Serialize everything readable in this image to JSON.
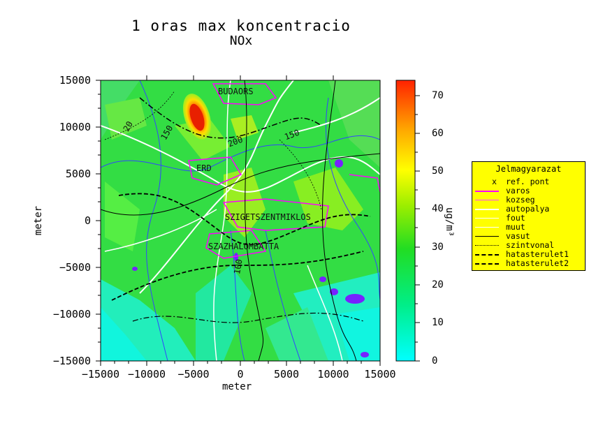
{
  "title": "1 oras max koncentracio",
  "subtitle": "NOx",
  "axes": {
    "xlabel": "meter",
    "ylabel": "meter",
    "xticks": [
      "−15000",
      "−10000",
      "−5000",
      "0",
      "5000",
      "10000",
      "15000"
    ],
    "yticks": [
      "15000",
      "10000",
      "5000",
      "0",
      "−5000",
      "−10000",
      "−15000"
    ]
  },
  "colorbar": {
    "label": "ug/m³",
    "ticks": [
      "70",
      "60",
      "50",
      "40",
      "30",
      "20",
      "10",
      "0"
    ],
    "range": [
      0,
      74
    ]
  },
  "map_labels": {
    "budaors": "BUDAORS",
    "erd": "ERD",
    "sziget": "SZIGETSZENTMIKLOS",
    "szazhalombatta": "SZAZHALOMBATTA",
    "c150a": "150",
    "c200": "200",
    "c150b": "150",
    "c100": "100",
    "c20": "20"
  },
  "legend": {
    "title": "Jelmagyarazat",
    "items": [
      {
        "label": "ref. pont",
        "symbol": "x"
      },
      {
        "label": "varos",
        "color": "#ff00ff"
      },
      {
        "label": "kozseg",
        "color": "#ff44ff"
      },
      {
        "label": "autopalya",
        "color": "#ffffff"
      },
      {
        "label": "fout",
        "color": "#ffffff"
      },
      {
        "label": "muut",
        "color": "#ffffff"
      },
      {
        "label": "vasut",
        "color": "#000000"
      },
      {
        "label": "szintvonal",
        "color": "#000000"
      },
      {
        "label": "hatasterulet1",
        "color": "#000000"
      },
      {
        "label": "hatasterulet2",
        "color": "#000000"
      }
    ]
  },
  "colors": {
    "field_low": "#00ffff",
    "field_mid": "#22dd22",
    "field_high": "#ffff00",
    "field_max": "#ff2200",
    "water": "#7722ff",
    "legend_bg": "#ffff00"
  }
}
